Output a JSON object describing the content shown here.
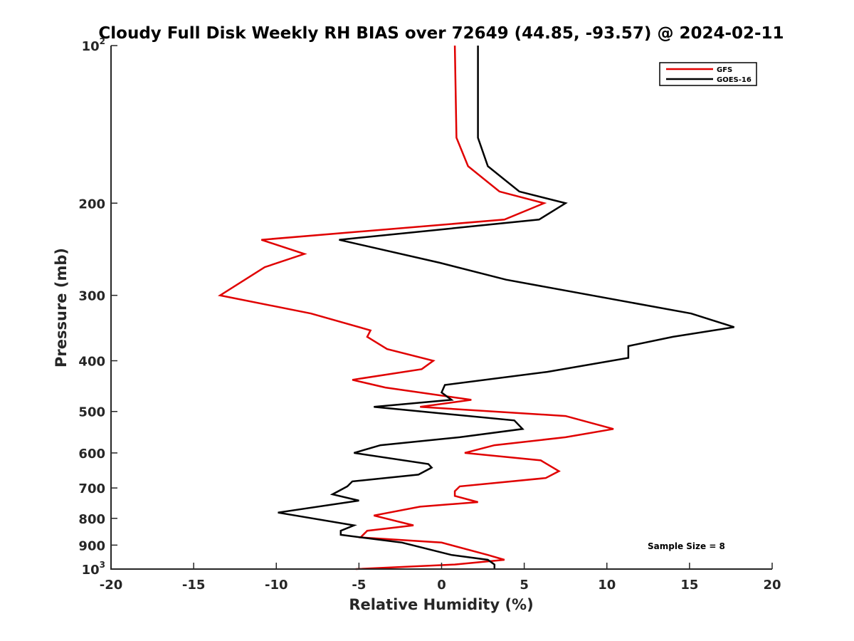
{
  "chart_data": {
    "type": "line",
    "title": "Cloudy Full Disk Weekly RH BIAS over 72649 (44.85, -93.57) @ 2024-02-11",
    "xlabel": "Relative Humidity (%)",
    "ylabel": "Pressure (mb)",
    "xlim": [
      -20,
      20
    ],
    "ylim": [
      100,
      1000
    ],
    "y_scale": "log",
    "y_reversed": true,
    "grid": false,
    "legend_position": "top-right",
    "x_ticks": [
      -20,
      -15,
      -10,
      -5,
      0,
      5,
      10,
      15,
      20
    ],
    "x_tick_labels": [
      "-20",
      "-15",
      "-10",
      "-5",
      "0",
      "5",
      "10",
      "15",
      "20"
    ],
    "y_ticks": [
      100,
      200,
      300,
      400,
      500,
      600,
      700,
      800,
      900,
      1000
    ],
    "y_tick_labels": [
      {
        "base": "10",
        "sup": "2"
      },
      {
        "base": "200",
        "sup": ""
      },
      {
        "base": "300",
        "sup": ""
      },
      {
        "base": "400",
        "sup": ""
      },
      {
        "base": "500",
        "sup": ""
      },
      {
        "base": "600",
        "sup": ""
      },
      {
        "base": "700",
        "sup": ""
      },
      {
        "base": "800",
        "sup": ""
      },
      {
        "base": "900",
        "sup": ""
      },
      {
        "base": "10",
        "sup": "3"
      }
    ],
    "annotation": "Sample Size = 8",
    "series": [
      {
        "name": "GFS",
        "color": "#e00000",
        "points": [
          [
            0.8,
            100
          ],
          [
            0.9,
            150
          ],
          [
            1.6,
            170
          ],
          [
            3.5,
            190
          ],
          [
            6.2,
            200
          ],
          [
            3.8,
            215
          ],
          [
            -10.9,
            235
          ],
          [
            -8.3,
            250
          ],
          [
            -10.7,
            265
          ],
          [
            -13.4,
            300
          ],
          [
            -7.9,
            325
          ],
          [
            -4.3,
            350
          ],
          [
            -4.5,
            360
          ],
          [
            -3.3,
            380
          ],
          [
            -0.5,
            400
          ],
          [
            -1.2,
            415
          ],
          [
            -5.4,
            435
          ],
          [
            -3.4,
            450
          ],
          [
            1.8,
            475
          ],
          [
            -1.3,
            490
          ],
          [
            7.5,
            510
          ],
          [
            10.4,
            540
          ],
          [
            7.5,
            560
          ],
          [
            3.2,
            580
          ],
          [
            1.4,
            600
          ],
          [
            6.0,
            620
          ],
          [
            7.1,
            650
          ],
          [
            6.3,
            670
          ],
          [
            1.1,
            695
          ],
          [
            0.8,
            710
          ],
          [
            0.8,
            725
          ],
          [
            2.2,
            745
          ],
          [
            -1.3,
            760
          ],
          [
            -4.1,
            790
          ],
          [
            -1.7,
            825
          ],
          [
            -4.5,
            845
          ],
          [
            -4.9,
            870
          ],
          [
            0.0,
            890
          ],
          [
            2.8,
            940
          ],
          [
            3.8,
            960
          ],
          [
            0.8,
            980
          ],
          [
            -5.2,
            1000
          ]
        ]
      },
      {
        "name": "GOES-16",
        "color": "#000000",
        "points": [
          [
            2.2,
            100
          ],
          [
            2.2,
            150
          ],
          [
            2.8,
            170
          ],
          [
            4.7,
            190
          ],
          [
            7.5,
            200
          ],
          [
            5.9,
            215
          ],
          [
            -6.2,
            235
          ],
          [
            -0.1,
            260
          ],
          [
            3.9,
            280
          ],
          [
            15.1,
            325
          ],
          [
            17.7,
            345
          ],
          [
            14.0,
            360
          ],
          [
            11.3,
            375
          ],
          [
            11.3,
            395
          ],
          [
            6.4,
            420
          ],
          [
            0.2,
            445
          ],
          [
            0.0,
            460
          ],
          [
            0.6,
            475
          ],
          [
            -4.1,
            490
          ],
          [
            4.4,
            520
          ],
          [
            4.9,
            540
          ],
          [
            1.1,
            560
          ],
          [
            -3.7,
            580
          ],
          [
            -5.3,
            600
          ],
          [
            -0.8,
            630
          ],
          [
            -0.6,
            640
          ],
          [
            -1.4,
            660
          ],
          [
            -5.4,
            680
          ],
          [
            -5.7,
            695
          ],
          [
            -6.6,
            720
          ],
          [
            -5.0,
            740
          ],
          [
            -9.9,
            780
          ],
          [
            -5.3,
            825
          ],
          [
            -6.1,
            845
          ],
          [
            -6.1,
            860
          ],
          [
            -2.4,
            890
          ],
          [
            0.6,
            940
          ],
          [
            2.8,
            960
          ],
          [
            3.2,
            980
          ],
          [
            3.2,
            1000
          ]
        ]
      }
    ]
  }
}
